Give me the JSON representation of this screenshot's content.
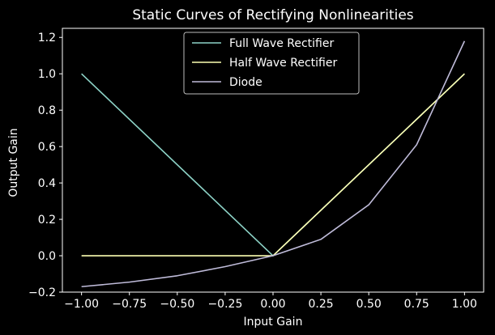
{
  "chart_data": {
    "type": "line",
    "title": "Static Curves of Rectifying Nonlinearities",
    "xlabel": "Input Gain",
    "ylabel": "Output Gain",
    "xlim": [
      -1.1,
      1.1
    ],
    "ylim": [
      -0.2,
      1.25
    ],
    "xticks": [
      -1.0,
      -0.75,
      -0.5,
      -0.25,
      0.0,
      0.25,
      0.5,
      0.75,
      1.0
    ],
    "xtick_labels": [
      "−1.00",
      "−0.75",
      "−0.50",
      "−0.25",
      "0.00",
      "0.25",
      "0.50",
      "0.75",
      "1.00"
    ],
    "yticks": [
      -0.2,
      0.0,
      0.2,
      0.4,
      0.6,
      0.8,
      1.0,
      1.2
    ],
    "ytick_labels": [
      "−0.2",
      "0.0",
      "0.2",
      "0.4",
      "0.6",
      "0.8",
      "1.0",
      "1.2"
    ],
    "grid": false,
    "legend_position": "top-center",
    "series": [
      {
        "name": "Full Wave Rectifier",
        "color": "#8dd3c7",
        "x": [
          -1.0,
          0.0,
          1.0
        ],
        "y": [
          1.0,
          0.0,
          1.0
        ]
      },
      {
        "name": "Half Wave Rectifier",
        "color": "#feffb3",
        "x": [
          -1.0,
          0.0,
          1.0
        ],
        "y": [
          0.0,
          0.0,
          1.0
        ]
      },
      {
        "name": "Diode",
        "color": "#bfbbd9",
        "x": [
          -1.0,
          -0.75,
          -0.5,
          -0.25,
          0.0,
          0.25,
          0.5,
          0.75,
          1.0
        ],
        "y": [
          -0.17,
          -0.145,
          -0.11,
          -0.06,
          0.0,
          0.09,
          0.28,
          0.61,
          1.18
        ]
      }
    ]
  }
}
